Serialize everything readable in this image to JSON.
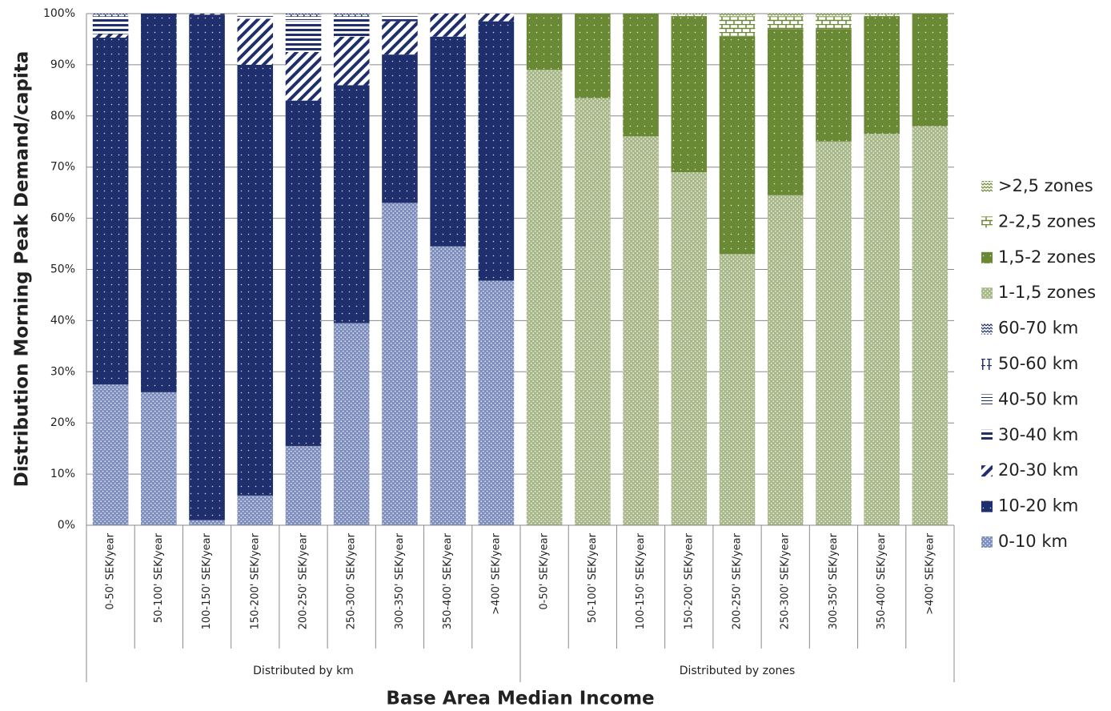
{
  "chart_data": {
    "type": "stacked-bar",
    "x_label": "Base Area Median Income",
    "y_label": "Distribution  Morning Peak Demand/capita",
    "groups": [
      {
        "name": "Distributed by km",
        "categories": [
          "0-50' SEK/year",
          "50-100' SEK/year",
          "100-150' SEK/year",
          "150-200' SEK/year",
          "200-250' SEK/year",
          "250-300' SEK/year",
          "300-350' SEK/year",
          "350-400' SEK/year",
          ">400' SEK/year"
        ]
      },
      {
        "name": "Distributed by zones",
        "categories": [
          "0-50' SEK/year",
          "50-100' SEK/year",
          "100-150' SEK/year",
          "150-200' SEK/year",
          "200-250' SEK/year",
          "250-300' SEK/year",
          "300-350' SEK/year",
          "350-400' SEK/year",
          ">400' SEK/year"
        ]
      }
    ],
    "ylim": [
      0,
      100
    ],
    "yticks": [
      {
        "value": 0,
        "label": "0%"
      },
      {
        "value": 10,
        "label": "10%"
      },
      {
        "value": 20,
        "label": "20%"
      },
      {
        "value": 30,
        "label": "30%"
      },
      {
        "value": 40,
        "label": "40%"
      },
      {
        "value": 50,
        "label": "50%"
      },
      {
        "value": 60,
        "label": "60%"
      },
      {
        "value": 70,
        "label": "70%"
      },
      {
        "value": 80,
        "label": "80%"
      },
      {
        "value": 90,
        "label": "90%"
      },
      {
        "value": 100,
        "label": "100%"
      }
    ],
    "grid": true,
    "legend": "right",
    "series": [
      {
        "name": "0-10 km",
        "color": "#7d8dbd",
        "pattern": "dots",
        "values": [
          27.5,
          26,
          1,
          5.8,
          15.5,
          39.5,
          63,
          54.5,
          47.8,
          0,
          0,
          0,
          0,
          0,
          0,
          0,
          0,
          0
        ]
      },
      {
        "name": "10-20 km",
        "color": "#1f2e6c",
        "pattern": "sparse-dots",
        "values": [
          67.8,
          74,
          98.8,
          84.2,
          67.5,
          46.5,
          29,
          41,
          50.7,
          0,
          0,
          0,
          0,
          0,
          0,
          0,
          0,
          0
        ]
      },
      {
        "name": "20-30 km",
        "color": "#1f2e6c",
        "pattern": "diagonal",
        "values": [
          0.7,
          0,
          0.2,
          9,
          9.5,
          9.5,
          6.5,
          4.5,
          1.5,
          0,
          0,
          0,
          0,
          0,
          0,
          0,
          0,
          0
        ]
      },
      {
        "name": "30-40 km",
        "color": "#1f2e6c",
        "pattern": "hstripes",
        "values": [
          3,
          0,
          0,
          0.5,
          6,
          3.5,
          1,
          0,
          0,
          0,
          0,
          0,
          0,
          0,
          0,
          0,
          0,
          0
        ]
      },
      {
        "name": "40-50 km",
        "color": "#1f2e6c",
        "pattern": "thin-hstripes",
        "values": [
          0.5,
          0,
          0,
          0.5,
          1,
          0.5,
          0.5,
          0,
          0,
          0,
          0,
          0,
          0,
          0,
          0,
          0,
          0,
          0
        ]
      },
      {
        "name": "50-60 km",
        "color": "#1f2e6c",
        "pattern": "ibeam",
        "values": [
          0.3,
          0,
          0,
          0,
          0.3,
          0.3,
          0,
          0,
          0,
          0,
          0,
          0,
          0,
          0,
          0,
          0,
          0,
          0
        ]
      },
      {
        "name": "60-70 km",
        "color": "#1f2e6c",
        "pattern": "waves",
        "values": [
          0.2,
          0,
          0,
          0,
          0.2,
          0.2,
          0,
          0,
          0,
          0,
          0,
          0,
          0,
          0,
          0,
          0,
          0,
          0
        ]
      },
      {
        "name": "1-1,5 zones",
        "color": "#a7b788",
        "pattern": "dots",
        "values": [
          0,
          0,
          0,
          0,
          0,
          0,
          0,
          0,
          0,
          89,
          83.5,
          76,
          69,
          53,
          64.5,
          75,
          76.5,
          78
        ]
      },
      {
        "name": "1,5-2 zones",
        "color": "#6a8935",
        "pattern": "sparse-dots",
        "values": [
          0,
          0,
          0,
          0,
          0,
          0,
          0,
          0,
          0,
          11,
          16.5,
          24,
          30.5,
          42.5,
          32.5,
          22,
          23,
          22
        ]
      },
      {
        "name": "2-2,5 zones",
        "color": "#6a8935",
        "pattern": "bricks",
        "values": [
          0,
          0,
          0,
          0,
          0,
          0,
          0,
          0,
          0,
          0,
          0,
          0,
          0.3,
          4,
          2.5,
          2.5,
          0.3,
          0
        ]
      },
      {
        "name": ">2,5 zones",
        "color": "#6a8935",
        "pattern": "waves",
        "values": [
          0,
          0,
          0,
          0,
          0,
          0,
          0,
          0,
          0,
          0,
          0,
          0,
          0.2,
          0.5,
          0.5,
          0.5,
          0.2,
          0
        ]
      }
    ]
  }
}
